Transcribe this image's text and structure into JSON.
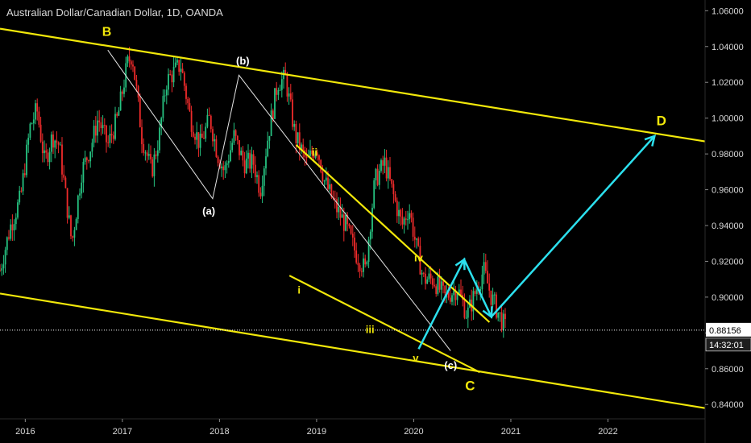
{
  "title": "Australian Dollar/Canadian Dollar, 1D, OANDA",
  "colors": {
    "up": "#26c281",
    "down": "#ef2b2b",
    "channel": "#f2e80a",
    "arrow": "#2ce0ee",
    "wave_line": "#e6e6e6",
    "bg": "#000000"
  },
  "price_label": {
    "value": "0.88156",
    "countdown": "14:32:01"
  },
  "chart_data": {
    "type": "line",
    "title": "Australian Dollar/Canadian Dollar, 1D, OANDA",
    "xlabel": "",
    "ylabel": "",
    "ylim": [
      0.832,
      1.066
    ],
    "xlim": [
      2015.74,
      2023.0
    ],
    "x_ticks": [
      "2016",
      "2017",
      "2018",
      "2019",
      "2020",
      "2021",
      "2022"
    ],
    "y_ticks": [
      "0.84000",
      "0.86000",
      "0.88000",
      "0.90000",
      "0.92000",
      "0.94000",
      "0.96000",
      "0.98000",
      "1.00000",
      "1.02000",
      "1.04000",
      "1.06000"
    ],
    "last_price": 0.88156,
    "price_path": [
      [
        2015.74,
        0.915
      ],
      [
        2015.85,
        0.94
      ],
      [
        2015.95,
        0.955
      ],
      [
        2016.05,
        0.995
      ],
      [
        2016.12,
        1.005
      ],
      [
        2016.2,
        0.975
      ],
      [
        2016.28,
        0.99
      ],
      [
        2016.35,
        0.985
      ],
      [
        2016.42,
        0.955
      ],
      [
        2016.48,
        0.93
      ],
      [
        2016.58,
        0.97
      ],
      [
        2016.68,
        0.985
      ],
      [
        2016.75,
        1.0
      ],
      [
        2016.85,
        0.985
      ],
      [
        2016.95,
        1.0
      ],
      [
        2017.0,
        1.015
      ],
      [
        2017.05,
        1.03
      ],
      [
        2017.1,
        1.036
      ],
      [
        2017.2,
        0.99
      ],
      [
        2017.3,
        0.97
      ],
      [
        2017.38,
        0.99
      ],
      [
        2017.45,
        1.02
      ],
      [
        2017.52,
        1.025
      ],
      [
        2017.6,
        1.03
      ],
      [
        2017.7,
        1.0
      ],
      [
        2017.8,
        0.985
      ],
      [
        2017.9,
        1.0
      ],
      [
        2017.98,
        0.98
      ],
      [
        2018.05,
        0.97
      ],
      [
        2018.15,
        0.99
      ],
      [
        2018.25,
        0.975
      ],
      [
        2018.35,
        0.975
      ],
      [
        2018.42,
        0.96
      ],
      [
        2018.5,
        0.99
      ],
      [
        2018.6,
        1.02
      ],
      [
        2018.68,
        1.022
      ],
      [
        2018.78,
        0.99
      ],
      [
        2018.9,
        0.975
      ],
      [
        2019.0,
        0.985
      ],
      [
        2019.08,
        0.965
      ],
      [
        2019.2,
        0.95
      ],
      [
        2019.3,
        0.94
      ],
      [
        2019.4,
        0.925
      ],
      [
        2019.5,
        0.915
      ],
      [
        2019.6,
        0.965
      ],
      [
        2019.7,
        0.975
      ],
      [
        2019.8,
        0.955
      ],
      [
        2019.88,
        0.94
      ],
      [
        2019.95,
        0.95
      ],
      [
        2020.02,
        0.93
      ],
      [
        2020.1,
        0.91
      ],
      [
        2020.2,
        0.91
      ],
      [
        2020.32,
        0.9
      ],
      [
        2020.45,
        0.905
      ],
      [
        2020.55,
        0.89
      ],
      [
        2020.65,
        0.905
      ],
      [
        2020.72,
        0.915
      ],
      [
        2020.8,
        0.9
      ],
      [
        2020.88,
        0.89
      ],
      [
        2020.95,
        0.882
      ]
    ],
    "wave_lines": [
      {
        "name": "B-(a)-(b)-(c)",
        "points": [
          [
            2016.85,
            1.038
          ],
          [
            2017.93,
            0.955
          ],
          [
            2018.2,
            1.024
          ],
          [
            2020.38,
            0.87
          ]
        ]
      }
    ],
    "channels": [
      {
        "points": [
          [
            2015.74,
            1.05
          ],
          [
            2023.0,
            0.987
          ]
        ]
      },
      {
        "points": [
          [
            2015.74,
            0.902
          ],
          [
            2023.0,
            0.838
          ]
        ]
      },
      {
        "points": [
          [
            2018.79,
            0.985
          ],
          [
            2020.78,
            0.886
          ]
        ]
      },
      {
        "points": [
          [
            2018.72,
            0.912
          ],
          [
            2020.68,
            0.858
          ]
        ]
      }
    ],
    "projection": {
      "points": [
        [
          2020.05,
          0.871
        ],
        [
          2020.52,
          0.921
        ],
        [
          2020.8,
          0.889
        ],
        [
          2022.48,
          0.99
        ]
      ]
    },
    "labels": [
      {
        "text": "B",
        "x": 2016.84,
        "y": 1.046,
        "color": "yellow",
        "size": 16
      },
      {
        "text": "(b)",
        "x": 2018.24,
        "y": 1.03,
        "color": "white",
        "size": 13
      },
      {
        "text": "(a)",
        "x": 2017.89,
        "y": 0.946,
        "color": "white",
        "size": 13
      },
      {
        "text": "ii",
        "x": 2018.98,
        "y": 0.979,
        "color": "yellow",
        "size": 13
      },
      {
        "text": "i",
        "x": 2018.82,
        "y": 0.902,
        "color": "yellow",
        "size": 13
      },
      {
        "text": "iv",
        "x": 2020.05,
        "y": 0.92,
        "color": "yellow",
        "size": 13
      },
      {
        "text": "iii",
        "x": 2019.55,
        "y": 0.88,
        "color": "yellow",
        "size": 13
      },
      {
        "text": "v",
        "x": 2020.02,
        "y": 0.864,
        "color": "yellow",
        "size": 13
      },
      {
        "text": "(c)",
        "x": 2020.38,
        "y": 0.86,
        "color": "white",
        "size": 13
      },
      {
        "text": "C",
        "x": 2020.58,
        "y": 0.848,
        "color": "yellow",
        "size": 17
      },
      {
        "text": "D",
        "x": 2022.55,
        "y": 0.996,
        "color": "yellow",
        "size": 17
      }
    ]
  }
}
